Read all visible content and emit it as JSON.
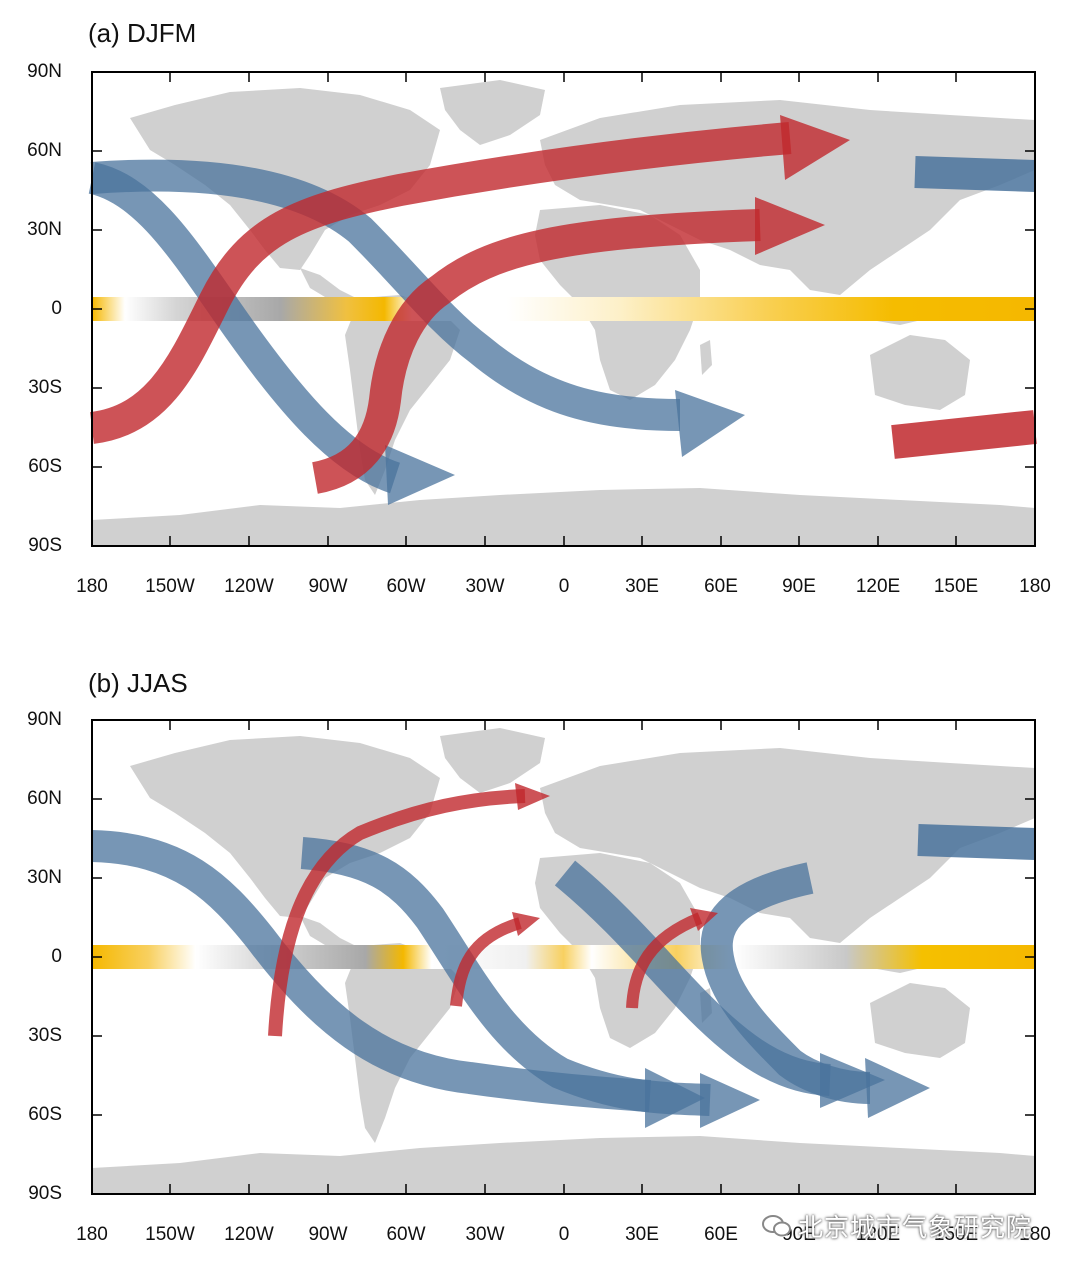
{
  "panels": [
    {
      "title": "(a) DJFM",
      "lat_labels": [
        "90N",
        "60N",
        "30N",
        "0",
        "30S",
        "60S",
        "90S"
      ],
      "lon_labels": [
        "180",
        "150W",
        "120W",
        "90W",
        "60W",
        "30W",
        "0",
        "30E",
        "60E",
        "90E",
        "120E",
        "150E",
        "180"
      ]
    },
    {
      "title": "(b) JJAS",
      "lat_labels": [
        "90N",
        "60N",
        "30N",
        "0",
        "30S",
        "60S",
        "90S"
      ],
      "lon_labels": [
        "180",
        "150W",
        "120W",
        "90W",
        "60W",
        "30W",
        "0",
        "30E",
        "60E",
        "90E",
        "120E",
        "150E",
        "180"
      ]
    }
  ],
  "colors": {
    "land": "#d0d0d0",
    "red_arrow": "#c0282d",
    "blue_arrow": "#4a739c",
    "equator_band": "#f5b800",
    "frame": "#000000"
  },
  "watermark": "北京城市气象研究院"
}
